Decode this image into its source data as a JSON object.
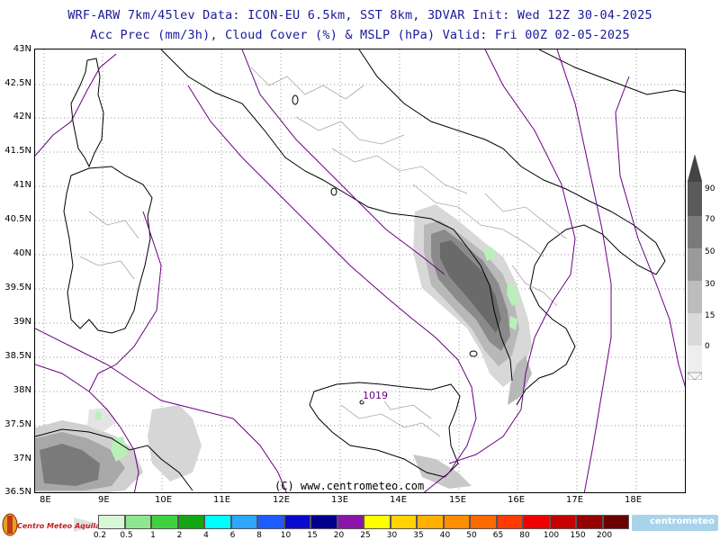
{
  "header": {
    "line1": "WRF-ARW 7km/45lev  Data: ICON-EU 6.5km, SST 8km, 3DVAR  Init: Wed 12Z 30-04-2025",
    "line2": "Acc Prec (mm/3h), Cloud Cover (%) & MSLP (hPa)  Valid: Fri 00Z 02-05-2025"
  },
  "map": {
    "lat_labels": [
      "43N",
      "42.5N",
      "42N",
      "41.5N",
      "41N",
      "40.5N",
      "40N",
      "39.5N",
      "39N",
      "38.5N",
      "38N",
      "37.5N",
      "37N",
      "36.5N"
    ],
    "lon_labels": [
      "8E",
      "9E",
      "10E",
      "11E",
      "12E",
      "13E",
      "14E",
      "15E",
      "16E",
      "17E",
      "18E"
    ],
    "isobar_label": "1019",
    "copyright": "(C) www.centrometeo.com"
  },
  "cloud_scale": {
    "labels": [
      "90",
      "70",
      "50",
      "30",
      "15",
      "0"
    ]
  },
  "precip_scale": {
    "labels": [
      "0.2",
      "0.5",
      "1",
      "2",
      "4",
      "6",
      "8",
      "10",
      "15",
      "20",
      "25",
      "30",
      "35",
      "40",
      "50",
      "65",
      "80",
      "100",
      "150",
      "200"
    ],
    "colors": [
      "#d7f7d7",
      "#8fe68f",
      "#3fd23f",
      "#13a613",
      "#00ffff",
      "#2fa7ff",
      "#1f5cff",
      "#0a0acc",
      "#00008f",
      "#8b15a8",
      "#ffff00",
      "#ffd200",
      "#ffb000",
      "#ff8e00",
      "#ff6a00",
      "#ff3c00",
      "#ee0000",
      "#c40000",
      "#960000",
      "#6a0000"
    ]
  },
  "logos": {
    "left": "Centro Meteo Aquila",
    "right": "centrometeo"
  },
  "colors": {
    "title": "#1a1a99",
    "isobar": "#6a0080",
    "coast": "#000000",
    "border": "#a0a0a0",
    "grid": "#9a9a9a"
  }
}
